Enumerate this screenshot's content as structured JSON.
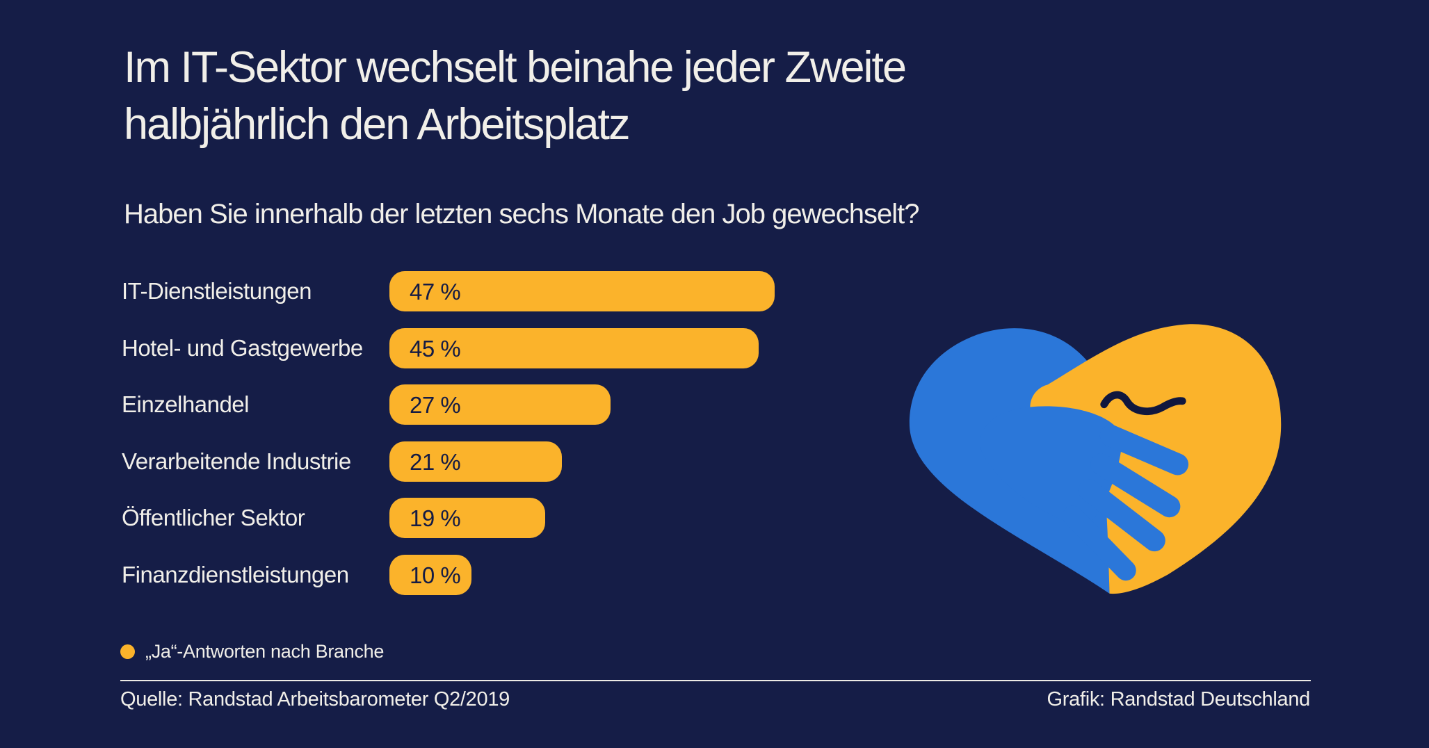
{
  "page": {
    "background_color": "#151D47",
    "title_line1": "Im IT-Sektor wechselt beinahe jeder Zweite",
    "title_line2": "halbjährlich den Arbeitsplatz",
    "subtitle": "Haben Sie innerhalb der letzten sechs Monate den Job gewechselt?"
  },
  "chart_data": {
    "type": "bar",
    "orientation": "horizontal",
    "title": "Haben Sie innerhalb der letzten sechs Monate den Job gewechselt?",
    "categories": [
      "IT-Dienstleistungen",
      "Hotel- und Gastgewerbe",
      "Einzelhandel",
      "Verarbeitende Industrie",
      "Öffentlicher Sektor",
      "Finanzdienstleistungen"
    ],
    "values": [
      47,
      45,
      27,
      21,
      19,
      10
    ],
    "value_labels": [
      "47 %",
      "45 %",
      "27 %",
      "21 %",
      "19 %",
      "10 %"
    ],
    "unit": "%",
    "xlim": [
      0,
      50
    ],
    "grid": false,
    "bar_color": "#FBB32B",
    "value_text_color": "#141B44",
    "legend": {
      "label": "„Ja“-Antworten nach Branche",
      "marker_color": "#FBB32B",
      "position": "bottom-left"
    }
  },
  "footer": {
    "source": "Quelle: Randstad Arbeitsbarometer Q2/2019",
    "credit": "Grafik: Randstad Deutschland"
  },
  "illustration": {
    "name": "handshake-heart",
    "left_hand_color": "#2B77D9",
    "right_hand_color": "#FBB32B",
    "crease_color": "#10173E"
  }
}
